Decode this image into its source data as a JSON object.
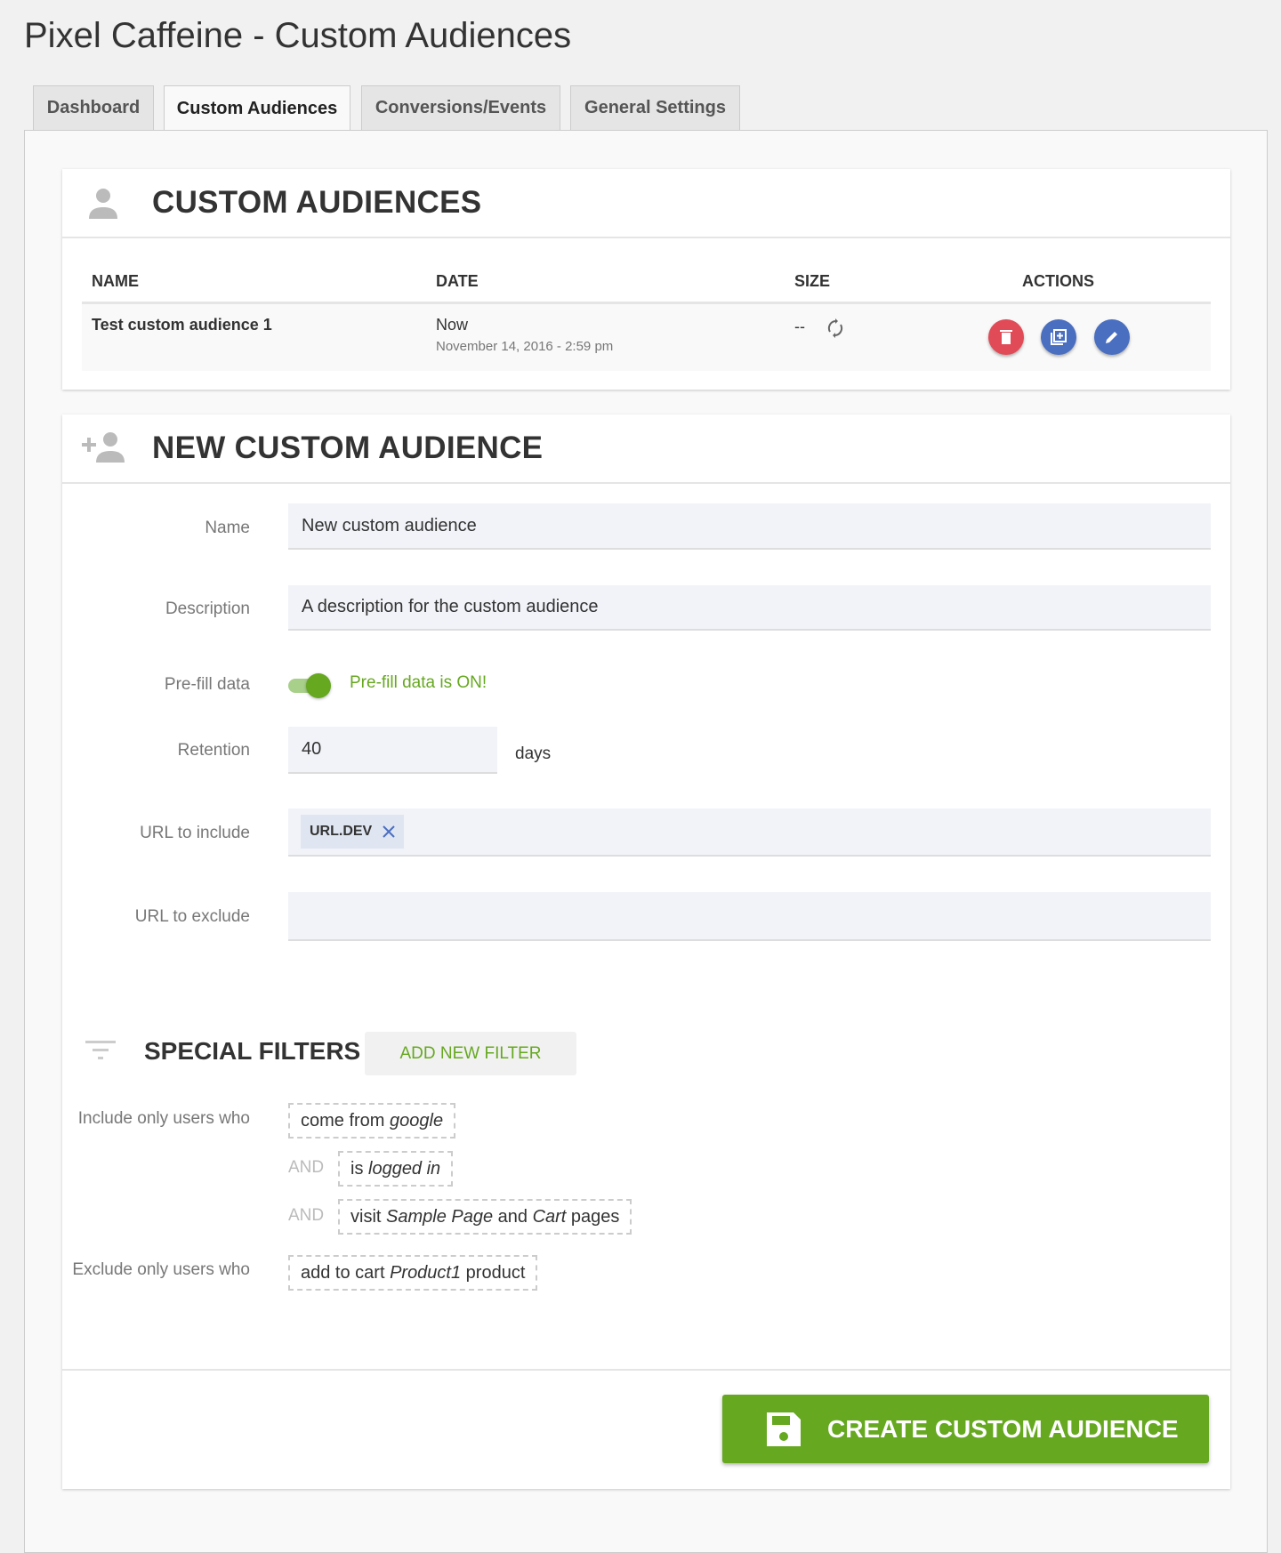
{
  "page_title": "Pixel Caffeine - Custom Audiences",
  "tabs": [
    {
      "label": "Dashboard"
    },
    {
      "label": "Custom Audiences",
      "active": true
    },
    {
      "label": "Conversions/Events"
    },
    {
      "label": "General Settings"
    }
  ],
  "audiences": {
    "title": "CUSTOM AUDIENCES",
    "columns": [
      "NAME",
      "DATE",
      "SIZE",
      "ACTIONS"
    ],
    "rows": [
      {
        "name": "Test custom audience 1",
        "date": "Now",
        "date_detail": "November 14, 2016 - 2:59 pm",
        "size": "--"
      }
    ],
    "action_icons": [
      "trash-icon",
      "duplicate-icon",
      "edit-icon"
    ]
  },
  "new_audience": {
    "title": "NEW CUSTOM AUDIENCE",
    "name_label": "Name",
    "name_value": "New custom audience",
    "description_label": "Description",
    "description_value": "A description for the custom audience",
    "prefill_label": "Pre-fill data",
    "prefill_on": true,
    "prefill_status": "Pre-fill data is ON!",
    "retention_label": "Retention",
    "retention_value": "40",
    "retention_unit": "days",
    "url_include_label": "URL to include",
    "url_include_tags": [
      "URL.DEV"
    ],
    "url_exclude_label": "URL to exclude",
    "url_exclude_value": "",
    "special_filters_title": "SPECIAL FILTERS",
    "add_filter_label": "ADD NEW FILTER",
    "include_label": "Include only users who",
    "and_label": "AND",
    "include_filters": [
      {
        "pre": "come from ",
        "em": "google",
        "post": ""
      },
      {
        "pre": "is ",
        "em": "logged in",
        "post": ""
      },
      {
        "pre": "visit ",
        "em": "Sample Page",
        "mid": " and ",
        "em2": "Cart",
        "post": " pages"
      }
    ],
    "exclude_label": "Exclude only users who",
    "exclude_filters": [
      {
        "pre": "add to cart ",
        "em": "Product1",
        "post": " product"
      }
    ],
    "create_label": "CREATE CUSTOM AUDIENCE"
  },
  "colors": {
    "green": "#66a820",
    "red": "#e04b57",
    "blue": "#4a6fc1"
  }
}
